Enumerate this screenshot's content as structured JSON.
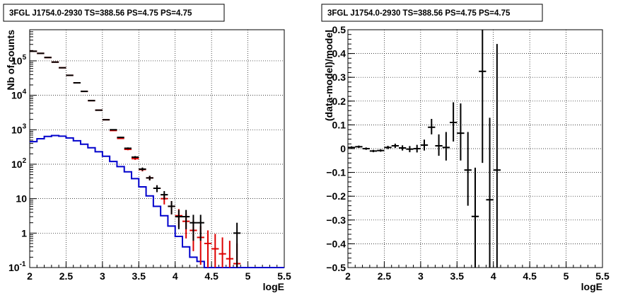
{
  "chart_data": [
    {
      "type": "scatter",
      "title": "3FGL J1754.0-2930 TS=388.56 PS=4.75 PS=4.75",
      "xlabel": "logE",
      "ylabel": "Nb of counts",
      "xlim": [
        2,
        5.5
      ],
      "ylim": [
        0.1,
        800000
      ],
      "yscale": "log",
      "grid": true,
      "x_ticks": [
        "2",
        "2.5",
        "3",
        "3.5",
        "4",
        "4.5",
        "5",
        "5.5"
      ],
      "y_ticks": [
        {
          "value": 0.1,
          "label": "10",
          "exp": "-1"
        },
        {
          "value": 1,
          "label": "1",
          "exp": ""
        },
        {
          "value": 10,
          "label": "10",
          "exp": ""
        },
        {
          "value": 100,
          "label": "10",
          "exp": "2"
        },
        {
          "value": 1000,
          "label": "10",
          "exp": "3"
        },
        {
          "value": 10000,
          "label": "10",
          "exp": "4"
        },
        {
          "value": 100000,
          "label": "10",
          "exp": "5"
        }
      ],
      "colors": {
        "data": "#000000",
        "model": "#dd0000",
        "component": "#0000cc"
      },
      "data_points": [
        {
          "x": 2.05,
          "y": 190000,
          "lo": 189000,
          "hi": 191000
        },
        {
          "x": 2.15,
          "y": 165000,
          "lo": 164000,
          "hi": 166000
        },
        {
          "x": 2.25,
          "y": 125000,
          "lo": 124000,
          "hi": 126000
        },
        {
          "x": 2.35,
          "y": 92000,
          "lo": 91000,
          "hi": 93000
        },
        {
          "x": 2.45,
          "y": 63000,
          "lo": 62500,
          "hi": 63500
        },
        {
          "x": 2.55,
          "y": 38000,
          "lo": 37600,
          "hi": 38400
        },
        {
          "x": 2.65,
          "y": 23000,
          "lo": 22700,
          "hi": 23300
        },
        {
          "x": 2.75,
          "y": 13000,
          "lo": 12800,
          "hi": 13200
        },
        {
          "x": 2.85,
          "y": 7000,
          "lo": 6900,
          "hi": 7100
        },
        {
          "x": 2.95,
          "y": 3700,
          "lo": 3640,
          "hi": 3760
        },
        {
          "x": 3.05,
          "y": 1950,
          "lo": 1910,
          "hi": 1990
        },
        {
          "x": 3.15,
          "y": 1000,
          "lo": 970,
          "hi": 1030
        },
        {
          "x": 3.25,
          "y": 600,
          "lo": 575,
          "hi": 625
        },
        {
          "x": 3.35,
          "y": 290,
          "lo": 273,
          "hi": 307
        },
        {
          "x": 3.45,
          "y": 160,
          "lo": 148,
          "hi": 172
        },
        {
          "x": 3.55,
          "y": 72,
          "lo": 64,
          "hi": 80
        },
        {
          "x": 3.65,
          "y": 40,
          "lo": 34,
          "hi": 46
        },
        {
          "x": 3.75,
          "y": 20,
          "lo": 15.5,
          "hi": 24.5
        },
        {
          "x": 3.85,
          "y": 13,
          "lo": 9.4,
          "hi": 16.6
        },
        {
          "x": 3.95,
          "y": 6,
          "lo": 3.5,
          "hi": 8.5
        },
        {
          "x": 4.05,
          "y": 3,
          "lo": 1.3,
          "hi": 4.7
        },
        {
          "x": 4.15,
          "y": 3,
          "lo": 1.3,
          "hi": 4.7
        },
        {
          "x": 4.25,
          "y": 2,
          "lo": 0.6,
          "hi": 3.4
        },
        {
          "x": 4.35,
          "y": 2,
          "lo": 0.6,
          "hi": 3.4
        },
        {
          "x": 4.85,
          "y": 1,
          "lo": 0.1,
          "hi": 2
        }
      ],
      "model_points": [
        {
          "x": 2.05,
          "y": 190000,
          "lo": 189000,
          "hi": 191000
        },
        {
          "x": 2.15,
          "y": 165000,
          "lo": 164000,
          "hi": 166000
        },
        {
          "x": 2.25,
          "y": 125000,
          "lo": 124000,
          "hi": 126000
        },
        {
          "x": 2.35,
          "y": 92000,
          "lo": 91000,
          "hi": 93000
        },
        {
          "x": 2.45,
          "y": 63000,
          "lo": 62500,
          "hi": 63500
        },
        {
          "x": 2.55,
          "y": 38000,
          "lo": 37600,
          "hi": 38400
        },
        {
          "x": 2.65,
          "y": 23000,
          "lo": 22700,
          "hi": 23300
        },
        {
          "x": 2.75,
          "y": 13000,
          "lo": 12800,
          "hi": 13200
        },
        {
          "x": 2.85,
          "y": 7000,
          "lo": 6900,
          "hi": 7100
        },
        {
          "x": 2.95,
          "y": 3700,
          "lo": 3640,
          "hi": 3760
        },
        {
          "x": 3.05,
          "y": 1950,
          "lo": 1910,
          "hi": 1990
        },
        {
          "x": 3.15,
          "y": 950,
          "lo": 920,
          "hi": 980
        },
        {
          "x": 3.25,
          "y": 560,
          "lo": 537,
          "hi": 583
        },
        {
          "x": 3.35,
          "y": 270,
          "lo": 254,
          "hi": 286
        },
        {
          "x": 3.45,
          "y": 145,
          "lo": 133,
          "hi": 157
        },
        {
          "x": 3.55,
          "y": 70,
          "lo": 62,
          "hi": 78
        },
        {
          "x": 3.65,
          "y": 40,
          "lo": 34,
          "hi": 46
        },
        {
          "x": 3.75,
          "y": 20,
          "lo": 15.5,
          "hi": 24.5
        },
        {
          "x": 3.85,
          "y": 10,
          "lo": 6.8,
          "hi": 13.2
        },
        {
          "x": 3.95,
          "y": 6,
          "lo": 3.5,
          "hi": 8.5
        },
        {
          "x": 4.05,
          "y": 3.2,
          "lo": 1.5,
          "hi": 5
        },
        {
          "x": 4.15,
          "y": 2.2,
          "lo": 0.7,
          "hi": 3.7
        },
        {
          "x": 4.25,
          "y": 1.2,
          "lo": 0.3,
          "hi": 2.3
        },
        {
          "x": 4.35,
          "y": 0.75,
          "lo": 0.12,
          "hi": 1.6
        },
        {
          "x": 4.45,
          "y": 0.5,
          "lo": 0.1,
          "hi": 1.2
        },
        {
          "x": 4.55,
          "y": 0.35,
          "lo": 0.1,
          "hi": 0.95
        },
        {
          "x": 4.65,
          "y": 0.25,
          "lo": 0.1,
          "hi": 0.75
        },
        {
          "x": 4.75,
          "y": 0.18,
          "lo": 0.1,
          "hi": 0.6
        },
        {
          "x": 4.85,
          "y": 0.13,
          "lo": 0.1,
          "hi": 0.5
        }
      ],
      "component_step": {
        "edges": [
          2.0,
          2.1,
          2.2,
          2.3,
          2.4,
          2.5,
          2.6,
          2.7,
          2.8,
          2.9,
          3.0,
          3.1,
          3.2,
          3.3,
          3.4,
          3.5,
          3.6,
          3.7,
          3.8,
          3.9,
          4.0,
          4.1,
          4.2,
          4.3,
          4.4,
          4.5,
          4.6,
          4.7,
          4.8,
          4.9,
          5.0,
          5.1,
          5.2,
          5.3,
          5.4,
          5.5
        ],
        "values": [
          450,
          550,
          640,
          680,
          650,
          580,
          480,
          380,
          300,
          230,
          170,
          120,
          85,
          60,
          38,
          22,
          12,
          6,
          3.2,
          1.6,
          0.8,
          0.4,
          0.2,
          0.15,
          0.1,
          0.1,
          0.1,
          0.1,
          0.1,
          0.1,
          0.1,
          0.1,
          0.1,
          0.1,
          0.1
        ]
      }
    },
    {
      "type": "scatter",
      "title": "3FGL J1754.0-2930 TS=388.56 PS=4.75 PS=4.75",
      "xlabel": "logE",
      "ylabel": "(data-model)/model",
      "xlim": [
        2,
        5.5
      ],
      "ylim": [
        -0.5,
        0.5
      ],
      "grid": true,
      "x_ticks": [
        "2",
        "2.5",
        "3",
        "3.5",
        "4",
        "4.5",
        "5",
        "5.5"
      ],
      "y_ticks": [
        "0.5",
        "0.4",
        "0.3",
        "0.2",
        "0.1",
        "0",
        "−0.1",
        "−0.2",
        "−0.3",
        "−0.4",
        "−0.5"
      ],
      "colors": {
        "data": "#000000"
      },
      "points": [
        {
          "x": 2.05,
          "y": 0.005,
          "lo": 0.0,
          "hi": 0.01
        },
        {
          "x": 2.15,
          "y": 0.008,
          "lo": 0.003,
          "hi": 0.013
        },
        {
          "x": 2.25,
          "y": 0.0,
          "lo": -0.005,
          "hi": 0.005
        },
        {
          "x": 2.35,
          "y": -0.01,
          "lo": -0.015,
          "hi": -0.005
        },
        {
          "x": 2.45,
          "y": -0.008,
          "lo": -0.013,
          "hi": -0.003
        },
        {
          "x": 2.55,
          "y": 0.005,
          "lo": -0.002,
          "hi": 0.012
        },
        {
          "x": 2.65,
          "y": 0.012,
          "lo": 0.003,
          "hi": 0.021
        },
        {
          "x": 2.75,
          "y": 0.003,
          "lo": -0.008,
          "hi": 0.014
        },
        {
          "x": 2.85,
          "y": -0.002,
          "lo": -0.015,
          "hi": 0.011
        },
        {
          "x": 2.95,
          "y": 0.0,
          "lo": -0.016,
          "hi": 0.016
        },
        {
          "x": 3.05,
          "y": 0.015,
          "lo": -0.008,
          "hi": 0.038
        },
        {
          "x": 3.15,
          "y": 0.09,
          "lo": 0.06,
          "hi": 0.125
        },
        {
          "x": 3.25,
          "y": 0.012,
          "lo": -0.03,
          "hi": 0.06
        },
        {
          "x": 3.35,
          "y": 0.005,
          "lo": -0.05,
          "hi": 0.07
        },
        {
          "x": 3.45,
          "y": 0.11,
          "lo": 0.03,
          "hi": 0.195
        },
        {
          "x": 3.55,
          "y": 0.065,
          "lo": -0.05,
          "hi": 0.19
        },
        {
          "x": 3.65,
          "y": -0.09,
          "lo": -0.24,
          "hi": 0.07
        },
        {
          "x": 3.75,
          "y": -0.285,
          "lo": -0.5,
          "hi": -0.08
        },
        {
          "x": 3.85,
          "y": 0.325,
          "lo": -0.06,
          "hi": 0.5
        },
        {
          "x": 3.95,
          "y": -0.215,
          "lo": -0.5,
          "hi": 0.13
        },
        {
          "x": 4.05,
          "y": -0.09,
          "lo": -0.5,
          "hi": 0.44
        }
      ]
    }
  ]
}
